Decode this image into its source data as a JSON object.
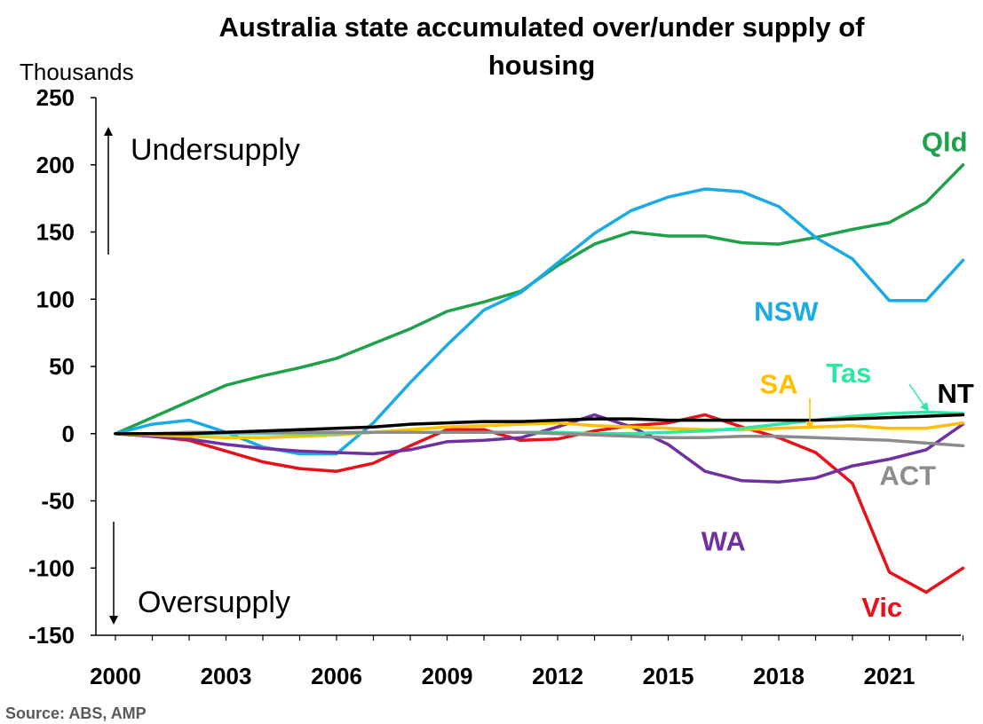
{
  "chart_data": {
    "type": "line",
    "title_line1": "Australia state accumulated over/under supply of",
    "title_line2": "housing",
    "ylabel": "Thousands",
    "ylim": [
      -150,
      250
    ],
    "yticks": [
      "250",
      "200",
      "150",
      "100",
      "50",
      "0",
      "-50",
      "-100",
      "-150"
    ],
    "ytick_values": [
      250,
      200,
      150,
      100,
      50,
      0,
      -50,
      -100,
      -150
    ],
    "xlim": [
      2000,
      2023
    ],
    "xticks": [
      "2000",
      "2003",
      "2006",
      "2009",
      "2012",
      "2015",
      "2018",
      "2021"
    ],
    "xtick_values": [
      2000,
      2003,
      2006,
      2009,
      2012,
      2015,
      2018,
      2021
    ],
    "x": [
      2000,
      2001,
      2002,
      2003,
      2004,
      2005,
      2006,
      2007,
      2008,
      2009,
      2010,
      2011,
      2012,
      2013,
      2014,
      2015,
      2016,
      2017,
      2018,
      2019,
      2020,
      2021,
      2022,
      2023
    ],
    "annotations": {
      "undersupply": "Undersupply",
      "oversupply": "Oversupply"
    },
    "series": [
      {
        "name": "Qld",
        "color": "#1fa149",
        "values": [
          0,
          12,
          24,
          36,
          43,
          49,
          56,
          67,
          78,
          91,
          98,
          106,
          125,
          141,
          150,
          147,
          147,
          142,
          141,
          146,
          152,
          157,
          172,
          200
        ]
      },
      {
        "name": "NSW",
        "color": "#1aabe6",
        "values": [
          0,
          7,
          10,
          1,
          -10,
          -15,
          -15,
          8,
          38,
          66,
          92,
          105,
          127,
          149,
          166,
          176,
          182,
          180,
          169,
          146,
          130,
          99,
          99,
          129
        ]
      },
      {
        "name": "Vic",
        "color": "#e8111a",
        "values": [
          0,
          -2,
          -5,
          -13,
          -21,
          -26,
          -28,
          -22,
          -9,
          3,
          3,
          -5,
          -4,
          2,
          6,
          8,
          14,
          5,
          -3,
          -14,
          -37,
          -103,
          -118,
          -100
        ]
      },
      {
        "name": "WA",
        "color": "#7030a0",
        "values": [
          0,
          -2,
          -4,
          -8,
          -11,
          -13,
          -14,
          -15,
          -12,
          -6,
          -5,
          -3,
          5,
          14,
          5,
          -8,
          -28,
          -35,
          -36,
          -33,
          -24,
          -19,
          -12,
          7
        ]
      },
      {
        "name": "SA",
        "color": "#ffc000",
        "values": [
          0,
          -1,
          -2,
          -3,
          -3,
          -2,
          -1,
          1,
          3,
          5,
          6,
          7,
          8,
          6,
          5,
          4,
          3,
          3,
          4,
          5,
          6,
          4,
          4,
          8
        ]
      },
      {
        "name": "Tas",
        "color": "#2be8a3",
        "values": [
          0,
          0,
          0,
          0,
          0,
          0,
          0,
          1,
          1,
          1,
          1,
          1,
          1,
          0,
          0,
          1,
          2,
          4,
          7,
          10,
          13,
          15,
          16,
          15
        ]
      },
      {
        "name": "ACT",
        "color": "#8c8c8c",
        "values": [
          0,
          0,
          1,
          1,
          1,
          1,
          1,
          1,
          1,
          1,
          1,
          1,
          0,
          -1,
          -2,
          -3,
          -3,
          -2,
          -2,
          -3,
          -4,
          -5,
          -7,
          -9
        ]
      },
      {
        "name": "NT",
        "color": "#000000",
        "values": [
          0,
          0,
          0,
          1,
          2,
          3,
          4,
          5,
          7,
          8,
          9,
          9,
          10,
          11,
          11,
          10,
          10,
          10,
          10,
          10,
          11,
          12,
          13,
          14
        ]
      }
    ],
    "series_labels": [
      {
        "name": "Qld",
        "text": "Qld",
        "anchor_year": 2022.5,
        "anchor_value": 210
      },
      {
        "name": "NSW",
        "text": "NSW",
        "anchor_year": 2018.2,
        "anchor_value": 84
      },
      {
        "name": "Vic",
        "text": "Vic",
        "anchor_year": 2020.8,
        "anchor_value": -136
      },
      {
        "name": "WA",
        "text": "WA",
        "anchor_year": 2016.5,
        "anchor_value": -87
      },
      {
        "name": "SA",
        "text": "SA",
        "anchor_year": 2018.0,
        "anchor_value": 30
      },
      {
        "name": "Tas",
        "text": "Tas",
        "anchor_year": 2019.9,
        "anchor_value": 38
      },
      {
        "name": "ACT",
        "text": "ACT",
        "anchor_year": 2021.5,
        "anchor_value": -38
      },
      {
        "name": "NT",
        "text": "NT",
        "anchor_year": 2022.8,
        "anchor_value": 23
      }
    ],
    "grid": false,
    "legend": "none (direct labels)"
  },
  "source": "Source: ABS, AMP"
}
